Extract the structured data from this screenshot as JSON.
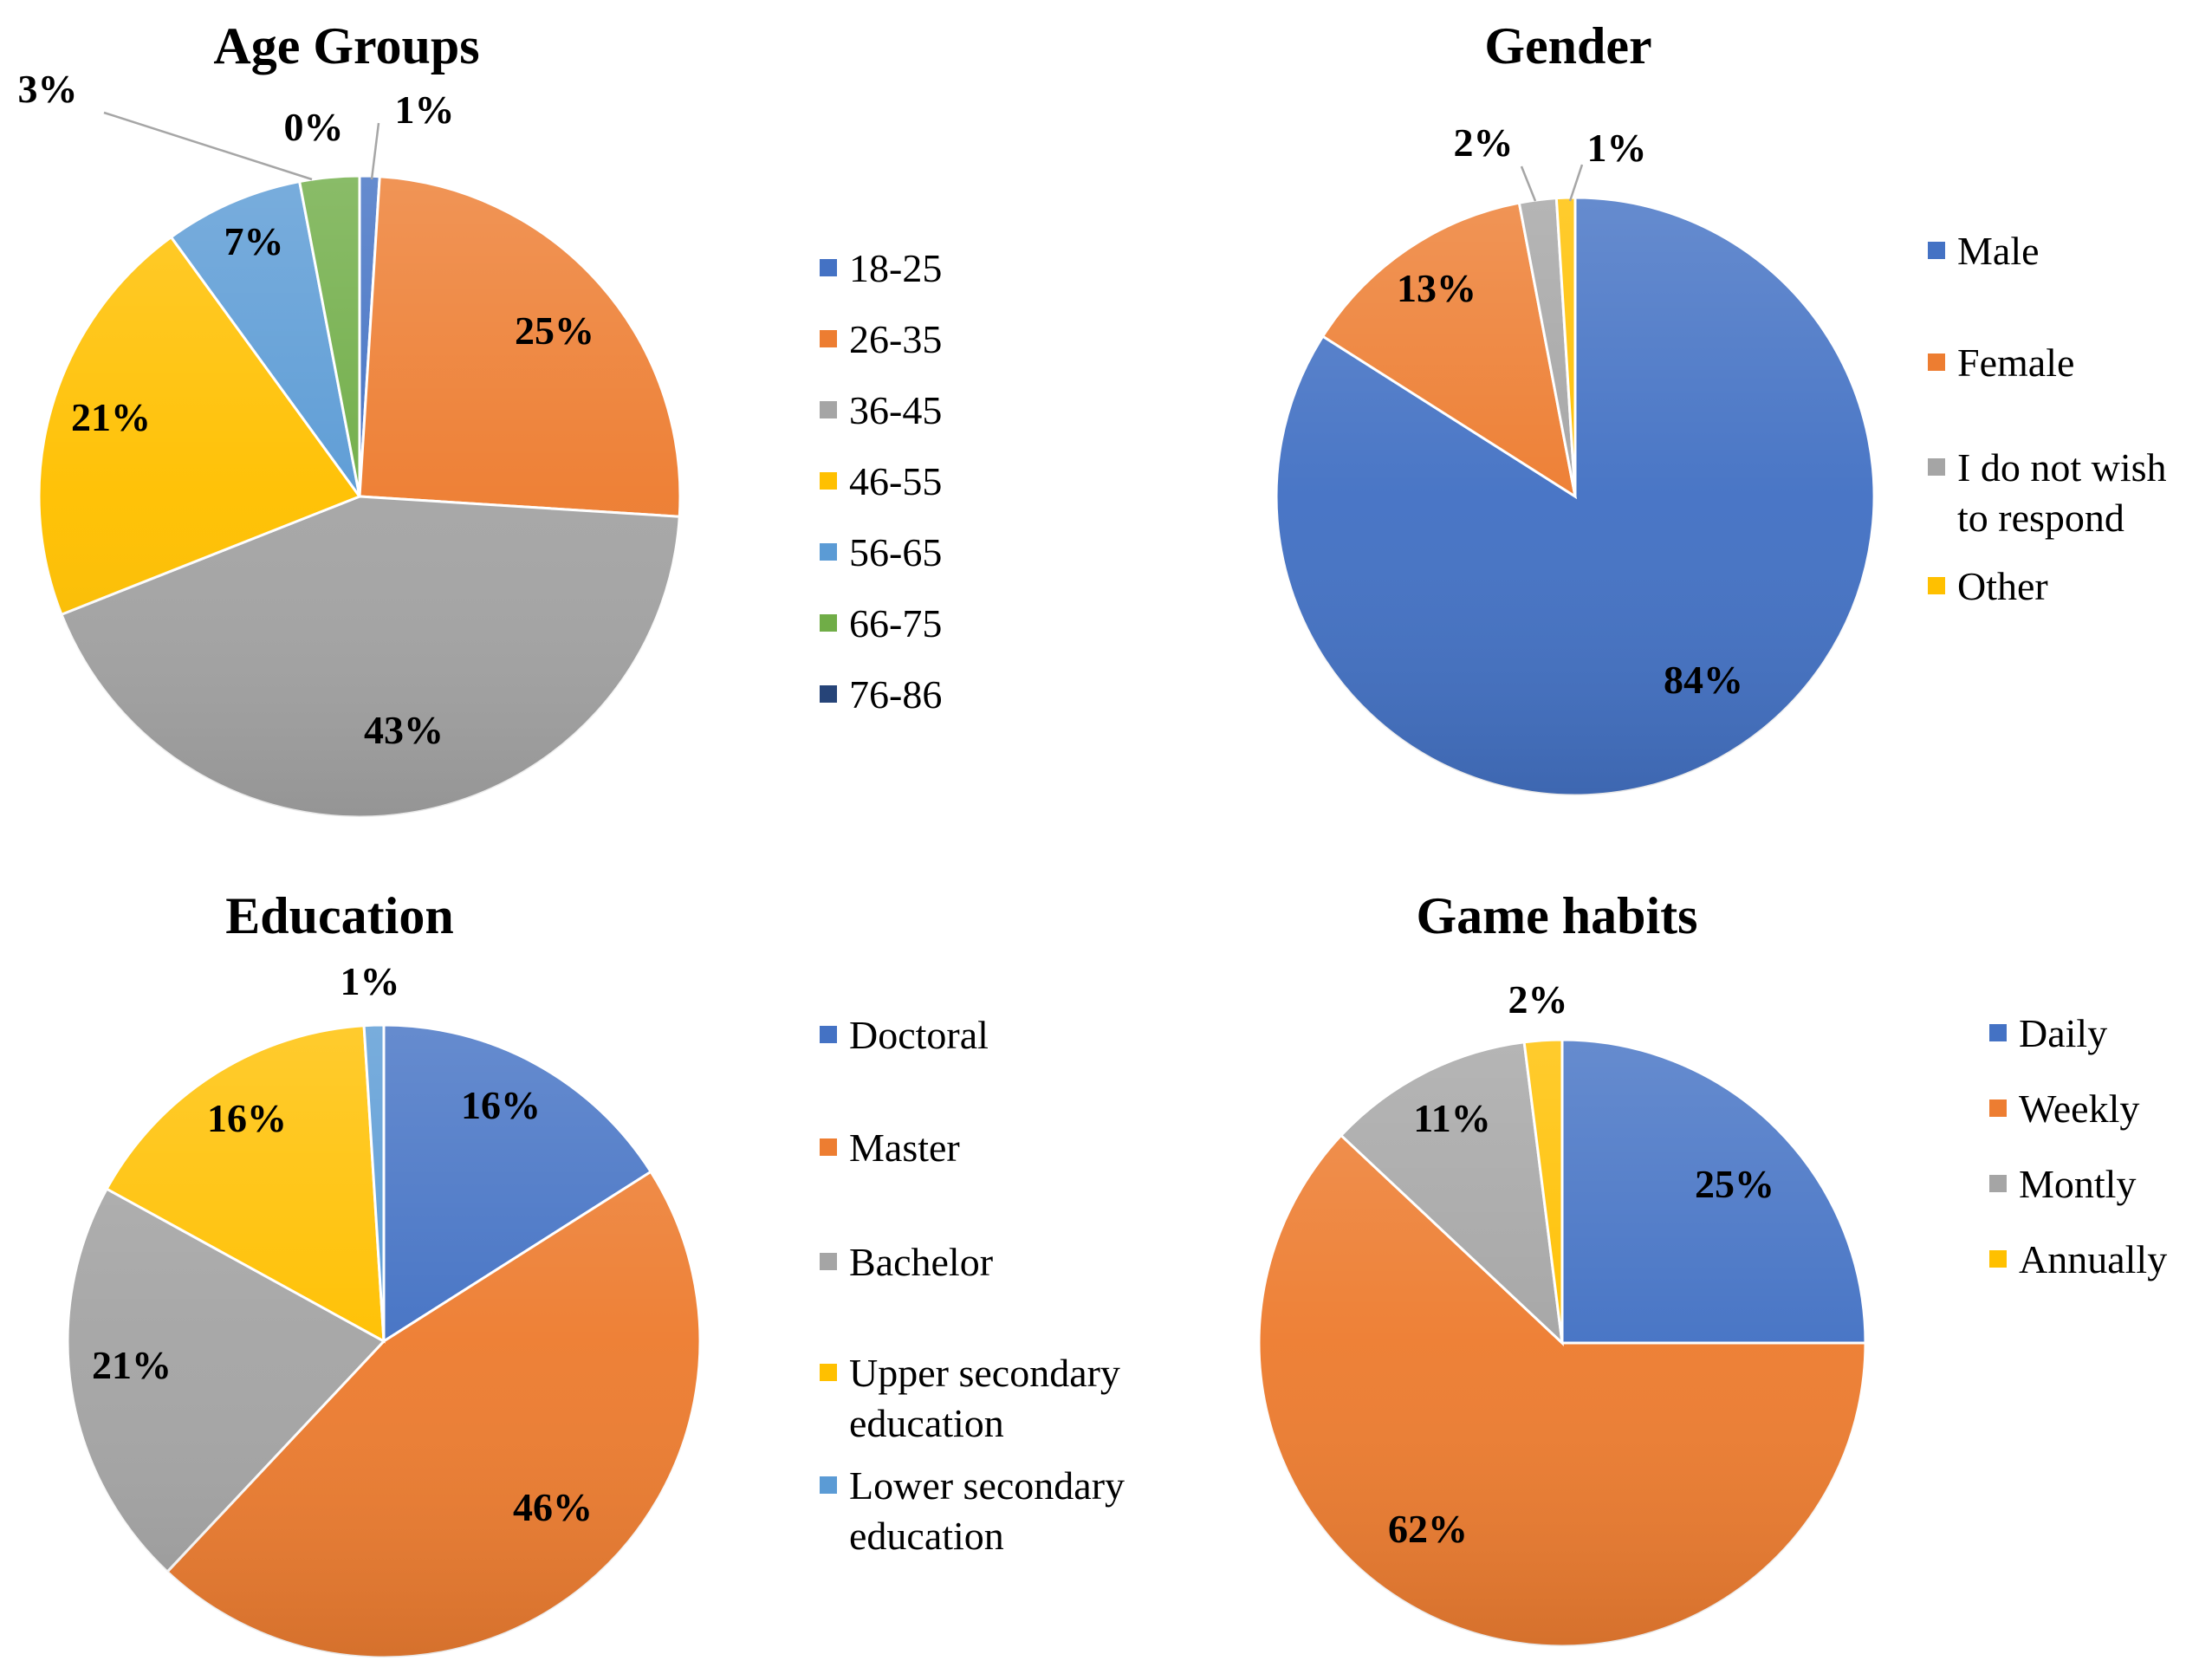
{
  "colors": {
    "blue": "#4472C4",
    "orange": "#ED7D31",
    "gray": "#A5A5A5",
    "yellow": "#FFC000",
    "lightblue": "#5B9BD5",
    "green": "#70AD47",
    "navy": "#264478",
    "leader": "#A6A6A6"
  },
  "chart_data": [
    {
      "type": "pie",
      "title": "Age Groups",
      "categories": [
        "18-25",
        "26-35",
        "36-45",
        "46-55",
        "56-65",
        "66-75",
        "76-86"
      ],
      "values": [
        1,
        25,
        43,
        21,
        7,
        3,
        0
      ],
      "labels": [
        "1%",
        "25%",
        "43%",
        "21%",
        "7%",
        "3%",
        "0%"
      ],
      "colors": [
        "#4472C4",
        "#ED7D31",
        "#A5A5A5",
        "#FFC000",
        "#5B9BD5",
        "#70AD47",
        "#264478"
      ],
      "legend": "right"
    },
    {
      "type": "pie",
      "title": "Gender",
      "categories": [
        "Male",
        "Female",
        "I do not wish to respond",
        "Other"
      ],
      "values": [
        84,
        13,
        2,
        1
      ],
      "labels": [
        "84%",
        "13%",
        "2%",
        "1%"
      ],
      "colors": [
        "#4472C4",
        "#ED7D31",
        "#A5A5A5",
        "#FFC000"
      ],
      "legend": "right"
    },
    {
      "type": "pie",
      "title": "Education",
      "categories": [
        "Doctoral",
        "Master",
        "Bachelor",
        "Upper secondary education",
        "Lower secondary education"
      ],
      "values": [
        16,
        46,
        21,
        16,
        1
      ],
      "labels": [
        "16%",
        "46%",
        "21%",
        "16%",
        "1%"
      ],
      "colors": [
        "#4472C4",
        "#ED7D31",
        "#A5A5A5",
        "#FFC000",
        "#5B9BD5"
      ],
      "legend": "right"
    },
    {
      "type": "pie",
      "title": "Game habits",
      "categories": [
        "Daily",
        "Weekly",
        "Montly",
        "Annually"
      ],
      "values": [
        25,
        62,
        11,
        2
      ],
      "labels": [
        "25%",
        "62%",
        "11%",
        "2%"
      ],
      "colors": [
        "#4472C4",
        "#ED7D31",
        "#A5A5A5",
        "#FFC000"
      ],
      "legend": "right"
    }
  ]
}
